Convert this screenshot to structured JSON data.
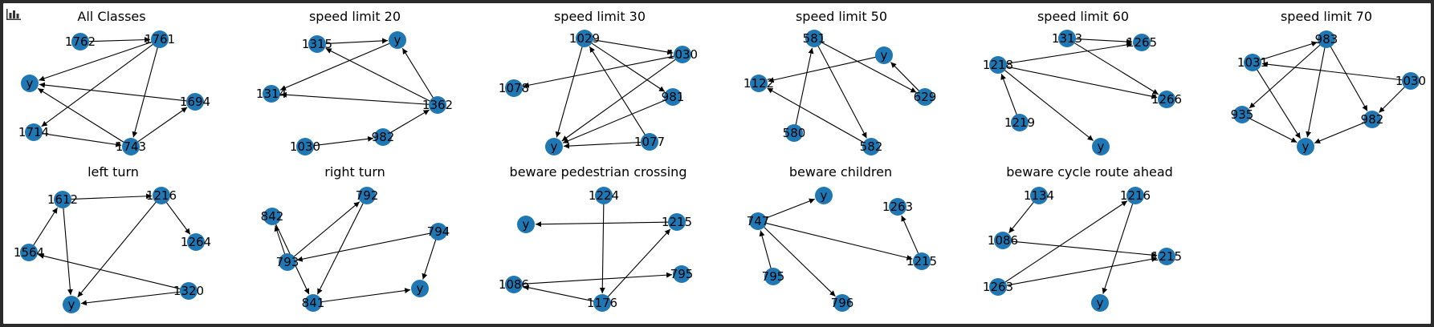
{
  "colors": {
    "node": "#1f77b4",
    "edge": "#000000",
    "label": "#000000",
    "background": "#ffffff",
    "frame": "#2b2b2b"
  },
  "toolbar": {
    "icon": "bar-chart-icon"
  },
  "graphs": [
    {
      "title": "All Classes",
      "nodes": [
        "1762",
        "1761",
        "y",
        "1694",
        "1714",
        "1743"
      ],
      "edges": [
        [
          "1762",
          "1761"
        ],
        [
          "1761",
          "y"
        ],
        [
          "1761",
          "1714"
        ],
        [
          "1761",
          "1743"
        ],
        [
          "1694",
          "y"
        ],
        [
          "1743",
          "y"
        ],
        [
          "1714",
          "1743"
        ],
        [
          "1743",
          "1694"
        ]
      ]
    },
    {
      "title": "speed limit 20",
      "nodes": [
        "1315",
        "y",
        "1314",
        "1362",
        "1030",
        "982"
      ],
      "edges": [
        [
          "1315",
          "y"
        ],
        [
          "1362",
          "1315"
        ],
        [
          "1362",
          "y"
        ],
        [
          "1362",
          "1314"
        ],
        [
          "y",
          "1314"
        ],
        [
          "1030",
          "982"
        ],
        [
          "982",
          "1362"
        ]
      ]
    },
    {
      "title": "speed limit 30",
      "nodes": [
        "1029",
        "1030",
        "1078",
        "981",
        "y",
        "1077"
      ],
      "edges": [
        [
          "1029",
          "1030"
        ],
        [
          "1029",
          "981"
        ],
        [
          "1029",
          "y"
        ],
        [
          "1030",
          "1078"
        ],
        [
          "1030",
          "y"
        ],
        [
          "981",
          "y"
        ],
        [
          "1077",
          "y"
        ],
        [
          "1077",
          "1029"
        ]
      ]
    },
    {
      "title": "speed limit 50",
      "nodes": [
        "581",
        "y",
        "1122",
        "629",
        "580",
        "582"
      ],
      "edges": [
        [
          "581",
          "629"
        ],
        [
          "581",
          "582"
        ],
        [
          "580",
          "581"
        ],
        [
          "y",
          "1122"
        ],
        [
          "629",
          "y"
        ],
        [
          "582",
          "1122"
        ]
      ]
    },
    {
      "title": "speed limit 60",
      "nodes": [
        "1313",
        "1265",
        "1218",
        "1266",
        "1219",
        "y"
      ],
      "edges": [
        [
          "1313",
          "1265"
        ],
        [
          "1313",
          "1266"
        ],
        [
          "1218",
          "1265"
        ],
        [
          "1218",
          "1266"
        ],
        [
          "1218",
          "y"
        ],
        [
          "1219",
          "1218"
        ]
      ]
    },
    {
      "title": "speed limit 70",
      "nodes": [
        "983",
        "1031",
        "1030",
        "935",
        "982",
        "y"
      ],
      "edges": [
        [
          "1031",
          "983"
        ],
        [
          "983",
          "935"
        ],
        [
          "983",
          "y"
        ],
        [
          "983",
          "982"
        ],
        [
          "1030",
          "1031"
        ],
        [
          "1030",
          "982"
        ],
        [
          "935",
          "y"
        ],
        [
          "1031",
          "y"
        ],
        [
          "982",
          "y"
        ]
      ]
    },
    {
      "title": "left turn",
      "nodes": [
        "1612",
        "1216",
        "1264",
        "1564",
        "1320",
        "y"
      ],
      "edges": [
        [
          "1612",
          "1216"
        ],
        [
          "1612",
          "y"
        ],
        [
          "1216",
          "1264"
        ],
        [
          "1216",
          "y"
        ],
        [
          "1564",
          "1612"
        ],
        [
          "1320",
          "1564"
        ],
        [
          "1320",
          "y"
        ]
      ]
    },
    {
      "title": "right turn",
      "nodes": [
        "792",
        "842",
        "794",
        "793",
        "841",
        "y"
      ],
      "edges": [
        [
          "793",
          "792"
        ],
        [
          "793",
          "842"
        ],
        [
          "794",
          "793"
        ],
        [
          "792",
          "841"
        ],
        [
          "842",
          "841"
        ],
        [
          "794",
          "y"
        ],
        [
          "841",
          "y"
        ]
      ]
    },
    {
      "title": "beware pedestrian crossing",
      "nodes": [
        "1224",
        "y",
        "1215",
        "1086",
        "795",
        "1176"
      ],
      "edges": [
        [
          "1215",
          "y"
        ],
        [
          "1224",
          "1176"
        ],
        [
          "1176",
          "1215"
        ],
        [
          "1176",
          "1086"
        ],
        [
          "1086",
          "795"
        ]
      ]
    },
    {
      "title": "beware children",
      "nodes": [
        "y",
        "1263",
        "747",
        "1215",
        "795",
        "796"
      ],
      "edges": [
        [
          "747",
          "y"
        ],
        [
          "747",
          "1215"
        ],
        [
          "747",
          "796"
        ],
        [
          "795",
          "747"
        ],
        [
          "1215",
          "1263"
        ]
      ]
    },
    {
      "title": "beware cycle route ahead",
      "nodes": [
        "1134",
        "1216",
        "1086",
        "1215",
        "1263",
        "y"
      ],
      "edges": [
        [
          "1134",
          "1086"
        ],
        [
          "1086",
          "1215"
        ],
        [
          "1263",
          "1216"
        ],
        [
          "1263",
          "1215"
        ],
        [
          "1216",
          "y"
        ]
      ]
    }
  ]
}
